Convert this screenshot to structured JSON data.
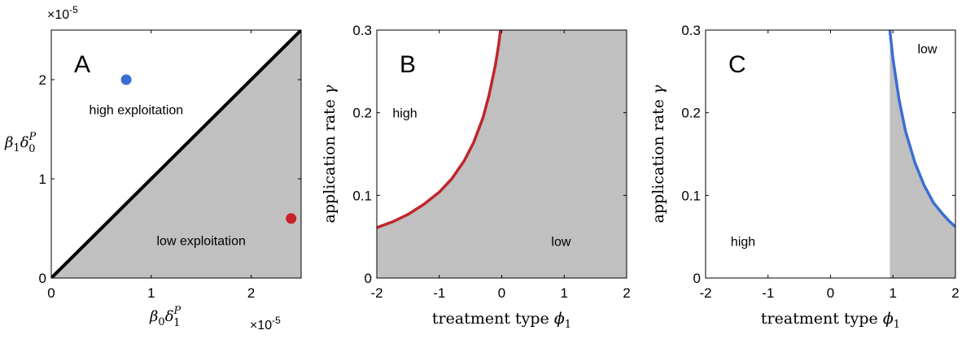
{
  "chart_data": [
    {
      "type": "area",
      "panel_label": "A",
      "xlabel": {
        "main": "β",
        "main_sub": "0",
        "var": "δ",
        "var_sub": "1",
        "var_sup": "P"
      },
      "ylabel": {
        "main": "β",
        "main_sub": "1",
        "var": "δ",
        "var_sub": "0",
        "var_sup": "P"
      },
      "x_exponent": {
        "base": "×10",
        "power": "-5"
      },
      "y_exponent": {
        "base": "×10",
        "power": "-5"
      },
      "xlim": [
        0,
        2.5
      ],
      "ylim": [
        0,
        2.5
      ],
      "xticks": [
        0,
        1,
        2
      ],
      "yticks": [
        0,
        1,
        2
      ],
      "xtick_labels": [
        "0",
        "1",
        "2"
      ],
      "ytick_labels": [
        "0",
        "1",
        "2"
      ],
      "boundary": {
        "x": [
          0,
          2.5
        ],
        "y": [
          0,
          2.5
        ],
        "color": "#000000"
      },
      "fill_color": "#c0c0c0",
      "points": [
        {
          "x": 0.75,
          "y": 2.0,
          "color": "#3b6fd4"
        },
        {
          "x": 2.4,
          "y": 0.6,
          "color": "#c8222a"
        }
      ],
      "regions": [
        {
          "label": "high exploitation",
          "x": 0.85,
          "y": 1.7
        },
        {
          "label": "low exploitation",
          "x": 1.5,
          "y": 0.38
        }
      ]
    },
    {
      "type": "area",
      "panel_label": "B",
      "xlabel": {
        "text": "treatment type ",
        "var": "ϕ",
        "var_sub": "1"
      },
      "ylabel": {
        "text": "application rate ",
        "var": "γ"
      },
      "xlim": [
        -2,
        2
      ],
      "ylim": [
        0,
        0.3
      ],
      "xticks": [
        -2,
        -1,
        0,
        1,
        2
      ],
      "yticks": [
        0,
        0.1,
        0.2,
        0.3
      ],
      "xtick_labels": [
        "-2",
        "-1",
        "0",
        "1",
        "2"
      ],
      "ytick_labels": [
        "0",
        "0.1",
        "0.2",
        "0.3"
      ],
      "boundary": {
        "color": "#c0262d",
        "x": [
          -2.0,
          -1.75,
          -1.5,
          -1.25,
          -1.0,
          -0.8,
          -0.6,
          -0.45,
          -0.3,
          -0.2,
          -0.1,
          -0.05,
          -0.02
        ],
        "y": [
          0.061,
          0.068,
          0.077,
          0.089,
          0.104,
          0.12,
          0.142,
          0.164,
          0.194,
          0.222,
          0.258,
          0.282,
          0.3
        ]
      },
      "fill_side": "right",
      "fill_color": "#c0c0c0",
      "regions": [
        {
          "label": "high",
          "x": -1.55,
          "y": 0.2
        },
        {
          "label": "low",
          "x": 0.95,
          "y": 0.045
        }
      ]
    },
    {
      "type": "area",
      "panel_label": "C",
      "xlabel": {
        "text": "treatment type ",
        "var": "ϕ",
        "var_sub": "1"
      },
      "ylabel": {
        "text": "application rate ",
        "var": "γ"
      },
      "xlim": [
        -2,
        2
      ],
      "ylim": [
        0,
        0.3
      ],
      "xticks": [
        -2,
        -1,
        0,
        1,
        2
      ],
      "yticks": [
        0,
        0.1,
        0.2,
        0.3
      ],
      "xtick_labels": [
        "-2",
        "-1",
        "0",
        "1",
        "2"
      ],
      "ytick_labels": [
        "0",
        "0.1",
        "0.2",
        "0.3"
      ],
      "boundary": {
        "color": "#3a6fd0",
        "x": [
          0.95,
          1.0,
          1.1,
          1.2,
          1.35,
          1.5,
          1.65,
          1.8,
          1.9,
          2.0
        ],
        "y": [
          0.3,
          0.265,
          0.215,
          0.178,
          0.14,
          0.112,
          0.091,
          0.077,
          0.069,
          0.062
        ]
      },
      "fill_side": "right",
      "fill_color": "#c0c0c0",
      "regions": [
        {
          "label": "high",
          "x": -1.4,
          "y": 0.045
        },
        {
          "label": "low",
          "x": 1.55,
          "y": 0.278
        }
      ]
    }
  ]
}
